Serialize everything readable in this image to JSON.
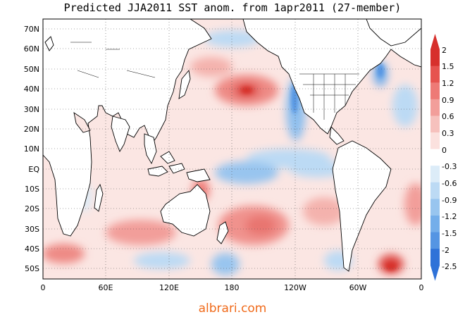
{
  "title": "Predicted JJA2011 SST anom. from 1apr2011 (27-member)",
  "watermark": "albrari.com",
  "lat_labels": [
    "70N",
    "60N",
    "50N",
    "40N",
    "30N",
    "20N",
    "10N",
    "EQ",
    "10S",
    "20S",
    "30S",
    "40S",
    "50S"
  ],
  "lon_labels": [
    "0",
    "60E",
    "120E",
    "180",
    "120W",
    "60W",
    "0"
  ],
  "colorbar": {
    "labels": [
      "2",
      "1.5",
      "1.2",
      "0.9",
      "0.6",
      "0.3",
      "0",
      "-0.3",
      "-0.6",
      "-0.9",
      "-1.2",
      "-1.5",
      "-2",
      "-2.5"
    ],
    "colors": [
      "#d7302c",
      "#e6534f",
      "#ee7a76",
      "#f29e9a",
      "#f6c1bd",
      "#fbe1de",
      "#ffffff",
      "#dcecf8",
      "#bcdaf4",
      "#98c5ef",
      "#74aeea",
      "#5595e3",
      "#2f72d8"
    ]
  }
}
